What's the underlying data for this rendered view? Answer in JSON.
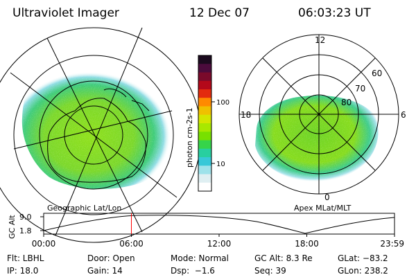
{
  "header": {
    "instrument": "Ultraviolet Imager",
    "date": "12 Dec 07",
    "time": "06:03:23 UT"
  },
  "colorbar": {
    "label": "photon cm-2s-1",
    "ticks": [
      "100",
      "10"
    ],
    "colors": [
      "#1b0a1e",
      "#4b0b3c",
      "#7a0a2b",
      "#b4081a",
      "#e32b0e",
      "#ff8a00",
      "#f0c000",
      "#d4e600",
      "#a8e800",
      "#78e000",
      "#36d44a",
      "#28cfa0",
      "#38c8d8",
      "#9ee2ea",
      "#dfeff2",
      "#ffffff"
    ]
  },
  "geo_map": {
    "caption": "Geographic Lat/Lon"
  },
  "mag_map": {
    "caption": "Apex MLat/MLT",
    "mlt_labels": {
      "top": "12",
      "left": "18",
      "right": "6",
      "bottom": "0"
    },
    "lat_labels": [
      "60",
      "70",
      "80"
    ]
  },
  "altitude_plot": {
    "ylabel": "GC Alt",
    "yticks": [
      "9.0",
      "1.8"
    ],
    "xticks": [
      "00:00",
      "06:00",
      "12:00",
      "18:00",
      "23:59"
    ],
    "current_time_fraction": 0.25,
    "marker_color": "#ff0000"
  },
  "info": {
    "row1": {
      "flt": "Flt: LBHL",
      "door": "Door: Open",
      "mode": "Mode: Normal",
      "gcalt": "GC Alt: 8.3 Re",
      "glat": "GLat: −83.2"
    },
    "row2": {
      "ip": "IP: 18.0",
      "gain": "Gain: 14",
      "dsp": "Dsp:  −1.6",
      "seq": "Seq: 39",
      "glon": "GLon: 238.2"
    }
  }
}
